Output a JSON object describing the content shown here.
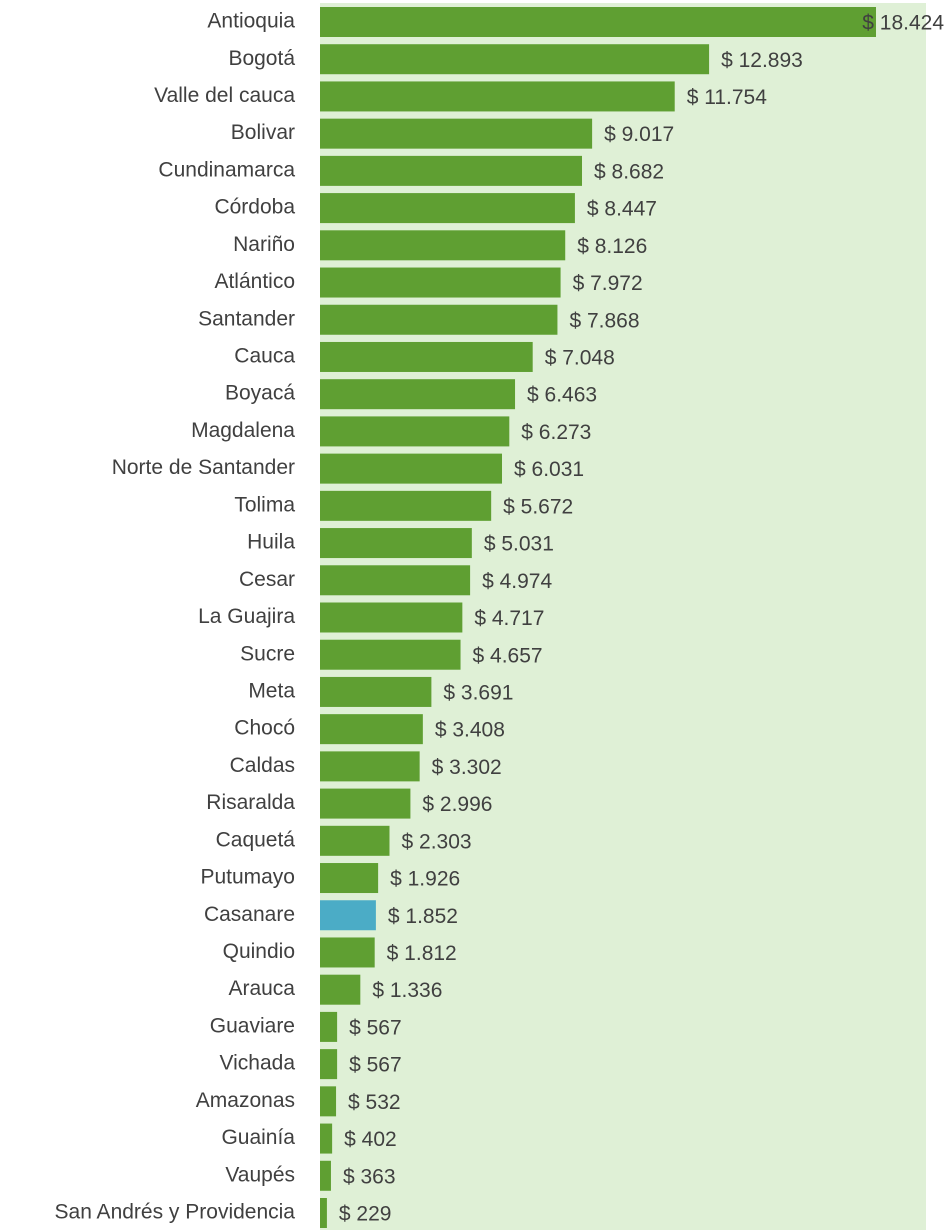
{
  "chart_data": {
    "type": "barh",
    "categories": [
      "Antioquia",
      "Bogotá",
      "Valle del cauca",
      "Bolivar",
      "Cundinamarca",
      "Córdoba",
      "Nariño",
      "Atlántico",
      "Santander",
      "Cauca",
      "Boyacá",
      "Magdalena",
      "Norte de Santander",
      "Tolima",
      "Huila",
      "Cesar",
      "La Guajira",
      "Sucre",
      "Meta",
      "Chocó",
      "Caldas",
      "Risaralda",
      "Caquetá",
      "Putumayo",
      "Casanare",
      "Quindio",
      "Arauca",
      "Guaviare",
      "Vichada",
      "Amazonas",
      "Guainía",
      "Vaupés",
      "San Andrés y Providencia"
    ],
    "values": [
      18424,
      12893,
      11754,
      9017,
      8682,
      8447,
      8126,
      7972,
      7868,
      7048,
      6463,
      6273,
      6031,
      5672,
      5031,
      4974,
      4717,
      4657,
      3691,
      3408,
      3302,
      2996,
      2303,
      1926,
      1852,
      1812,
      1336,
      567,
      567,
      532,
      402,
      363,
      229
    ],
    "value_labels": [
      "$ 18.424",
      "$ 12.893",
      "$ 11.754",
      "$ 9.017",
      "$ 8.682",
      "$ 8.447",
      "$ 8.126",
      "$ 7.972",
      "$ 7.868",
      "$ 7.048",
      "$ 6.463",
      "$ 6.273",
      "$ 6.031",
      "$ 5.672",
      "$ 5.031",
      "$ 4.974",
      "$ 4.717",
      "$ 4.657",
      "$ 3.691",
      "$ 3.408",
      "$ 3.302",
      "$ 2.996",
      "$ 2.303",
      "$ 1.926",
      "$ 1.852",
      "$ 1.812",
      "$ 1.336",
      "$ 567",
      "$ 567",
      "$ 532",
      "$ 402",
      "$ 363",
      "$ 229"
    ],
    "colors": [
      "#5f9f32",
      "#5f9f32",
      "#5f9f32",
      "#5f9f32",
      "#5f9f32",
      "#5f9f32",
      "#5f9f32",
      "#5f9f32",
      "#5f9f32",
      "#5f9f32",
      "#5f9f32",
      "#5f9f32",
      "#5f9f32",
      "#5f9f32",
      "#5f9f32",
      "#5f9f32",
      "#5f9f32",
      "#5f9f32",
      "#5f9f32",
      "#5f9f32",
      "#5f9f32",
      "#5f9f32",
      "#5f9f32",
      "#5f9f32",
      "#4bacc6",
      "#5f9f32",
      "#5f9f32",
      "#5f9f32",
      "#5f9f32",
      "#5f9f32",
      "#5f9f32",
      "#5f9f32",
      "#5f9f32"
    ],
    "plot_background": "#dff0d6"
  }
}
